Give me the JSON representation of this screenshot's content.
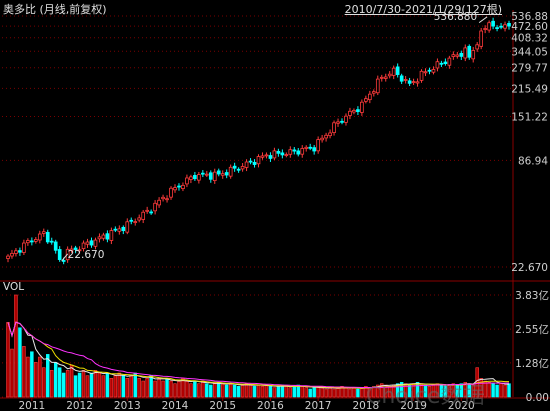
{
  "header": {
    "title": "奥多比 (月线,前复权)",
    "range": "2010/7/30-2021/1/29(127根)"
  },
  "watermark": "Choice数据",
  "colors": {
    "background": "#000000",
    "up": "#ff3b3b",
    "down": "#00ffff",
    "ma_white": "#e8e8e8",
    "ma_yellow": "#f0e000",
    "ma_magenta": "#ff33ff",
    "axis_text": "#cfcfcf",
    "grid": "#7a0000"
  },
  "chart_data": [
    {
      "type": "candlestick",
      "title": "奥多比 (月线,前复权)",
      "y_scale": "log",
      "yticks": [
        22.67,
        86.94,
        151.22,
        215.49,
        279.77,
        344.05,
        408.32,
        472.6,
        536.88
      ],
      "ytick_labels": [
        "22.670",
        "86.94",
        "151.22",
        "215.49",
        "279.77",
        "344.05",
        "408.32",
        "472.60",
        "536.88"
      ],
      "x_labels": [
        "2011",
        "2012",
        "2013",
        "2014",
        "2015",
        "2016",
        "2017",
        "2018",
        "2019",
        "2020"
      ],
      "annotations": [
        {
          "label": "22.670",
          "value": 22.67,
          "kind": "low"
        },
        {
          "label": "536.880",
          "value": 536.88,
          "kind": "high"
        }
      ],
      "anchors": [
        [
          "2010-07",
          25.5
        ],
        [
          "2010-12",
          31.0
        ],
        [
          "2011-04",
          34.5
        ],
        [
          "2011-06",
          31.0
        ],
        [
          "2011-08",
          24.5
        ],
        [
          "2011-10",
          27.5
        ],
        [
          "2011-12",
          28.5
        ],
        [
          "2012-06",
          32.5
        ],
        [
          "2012-12",
          37.5
        ],
        [
          "2013-06",
          45.5
        ],
        [
          "2013-12",
          59.0
        ],
        [
          "2014-06",
          72.0
        ],
        [
          "2014-12",
          72.5
        ],
        [
          "2015-06",
          81.0
        ],
        [
          "2015-12",
          93.0
        ],
        [
          "2016-06",
          96.0
        ],
        [
          "2016-12",
          103.0
        ],
        [
          "2017-06",
          141.0
        ],
        [
          "2017-12",
          175.0
        ],
        [
          "2018-05",
          248.0
        ],
        [
          "2018-08",
          268.0
        ],
        [
          "2018-12",
          226.0
        ],
        [
          "2019-04",
          266.0
        ],
        [
          "2019-12",
          330.0
        ],
        [
          "2020-02",
          345.0
        ],
        [
          "2020-03",
          318.0
        ],
        [
          "2020-05",
          387.0
        ],
        [
          "2020-08",
          505.0
        ],
        [
          "2020-10",
          447.0
        ],
        [
          "2020-12",
          500.0
        ],
        [
          "2021-01",
          459.0
        ]
      ]
    },
    {
      "type": "bar",
      "title": "VOL",
      "ytick_labels": [
        "0.00",
        "1.28亿",
        "2.55亿",
        "3.83亿"
      ],
      "yticks": [
        0,
        1.28,
        2.55,
        3.83
      ],
      "unit": "亿",
      "values": [
        2.8,
        1.8,
        3.83,
        2.6,
        1.9,
        1.5,
        1.7,
        1.3,
        1.5,
        1.1,
        1.6,
        1.0,
        1.3,
        1.1,
        0.9,
        1.0,
        1.2,
        0.8,
        0.9,
        1.0,
        0.8,
        0.9,
        1.0,
        0.9,
        0.8,
        0.9,
        0.7,
        0.8,
        0.9,
        0.8,
        0.7,
        0.8,
        0.9,
        0.7,
        0.6,
        0.7,
        0.8,
        0.6,
        0.7,
        0.6,
        0.7,
        0.6,
        0.5,
        0.6,
        0.7,
        0.6,
        0.5,
        0.6,
        0.5,
        0.6,
        0.5,
        0.45,
        0.5,
        0.55,
        0.5,
        0.45,
        0.5,
        0.45,
        0.4,
        0.45,
        0.5,
        0.45,
        0.4,
        0.45,
        0.4,
        0.45,
        0.4,
        0.35,
        0.4,
        0.45,
        0.4,
        0.35,
        0.4,
        0.45,
        0.4,
        0.35,
        0.3,
        0.35,
        0.4,
        0.35,
        0.3,
        0.35,
        0.3,
        0.35,
        0.4,
        0.35,
        0.3,
        0.35,
        0.3,
        0.35,
        0.4,
        0.35,
        0.4,
        0.45,
        0.5,
        0.45,
        0.4,
        0.45,
        0.5,
        0.55,
        0.5,
        0.45,
        0.5,
        0.55,
        0.5,
        0.45,
        0.4,
        0.45,
        0.5,
        0.45,
        0.4,
        0.45,
        0.5,
        0.45,
        0.5,
        0.55,
        0.5,
        0.45,
        1.1,
        0.7,
        0.6,
        0.55,
        0.5,
        0.45,
        0.5,
        0.45,
        0.5
      ]
    }
  ]
}
